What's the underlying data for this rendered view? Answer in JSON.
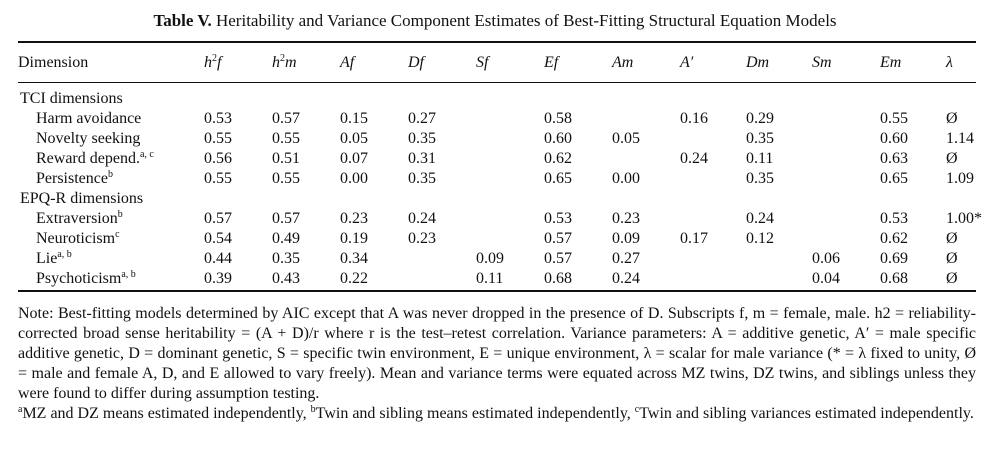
{
  "caption": {
    "label": "Table V.",
    "title": "Heritability and Variance Component Estimates of Best-Fitting Structural Equation Models"
  },
  "table": {
    "columns": {
      "dimension": "Dimension",
      "h2f_base": "h",
      "h2f_sup": "2",
      "h2f_sub": "f",
      "h2m_base": "h",
      "h2m_sup": "2",
      "h2m_sub": "m",
      "af": "Af",
      "df": "Df",
      "sf": "Sf",
      "ef": "Ef",
      "am": "Am",
      "aprime": "A′",
      "dm": "Dm",
      "sm": "Sm",
      "em": "Em",
      "lambda": "λ"
    },
    "sections": [
      {
        "title": "TCI dimensions",
        "rows": [
          {
            "label": "Harm avoidance",
            "sup": "",
            "values": [
              "0.53",
              "0.57",
              "0.15",
              "0.27",
              "",
              "0.58",
              "",
              "0.16",
              "0.29",
              "",
              "0.55",
              "Ø"
            ]
          },
          {
            "label": "Novelty seeking",
            "sup": "",
            "values": [
              "0.55",
              "0.55",
              "0.05",
              "0.35",
              "",
              "0.60",
              "0.05",
              "",
              "0.35",
              "",
              "0.60",
              "1.14"
            ]
          },
          {
            "label": "Reward depend.",
            "sup": "a, c",
            "values": [
              "0.56",
              "0.51",
              "0.07",
              "0.31",
              "",
              "0.62",
              "",
              "0.24",
              "0.11",
              "",
              "0.63",
              "Ø"
            ]
          },
          {
            "label": "Persistence",
            "sup": "b",
            "values": [
              "0.55",
              "0.55",
              "0.00",
              "0.35",
              "",
              "0.65",
              "0.00",
              "",
              "0.35",
              "",
              "0.65",
              "1.09"
            ]
          }
        ]
      },
      {
        "title": "EPQ-R dimensions",
        "rows": [
          {
            "label": "Extraversion",
            "sup": "b",
            "values": [
              "0.57",
              "0.57",
              "0.23",
              "0.24",
              "",
              "0.53",
              "0.23",
              "",
              "0.24",
              "",
              "0.53",
              "1.00*"
            ]
          },
          {
            "label": "Neuroticism",
            "sup": "c",
            "values": [
              "0.54",
              "0.49",
              "0.19",
              "0.23",
              "",
              "0.57",
              "0.09",
              "0.17",
              "0.12",
              "",
              "0.62",
              "Ø"
            ]
          },
          {
            "label": "Lie",
            "sup": "a, b",
            "values": [
              "0.44",
              "0.35",
              "0.34",
              "",
              "0.09",
              "0.57",
              "0.27",
              "",
              "",
              "0.06",
              "0.69",
              "Ø"
            ]
          },
          {
            "label": "Psychoticism",
            "sup": "a, b",
            "values": [
              "0.39",
              "0.43",
              "0.22",
              "",
              "0.11",
              "0.68",
              "0.24",
              "",
              "",
              "0.04",
              "0.68",
              "Ø"
            ]
          }
        ]
      }
    ]
  },
  "notes": {
    "main": "Note: Best-fitting models determined by AIC except that A was never dropped in the presence of D. Subscripts f, m = female, male. h2 = reliability-corrected broad sense heritability = (A + D)/r where r is the test–retest correlation. Variance parameters: A = additive genetic, A′ = male specific additive genetic, D = dominant genetic, S = specific twin environment, E = unique environment, λ = scalar for male variance (* = λ fixed to unity, Ø = male and female A, D, and E allowed to vary freely). Mean and variance terms were equated across MZ twins, DZ twins, and siblings unless they were found to differ during assumption testing.",
    "footnote_a_mark": "a",
    "footnote_a": "MZ and DZ means estimated independently, ",
    "footnote_b_mark": "b",
    "footnote_b": "Twin and sibling means estimated independently, ",
    "footnote_c_mark": "c",
    "footnote_c": "Twin and sibling variances estimated independently."
  }
}
